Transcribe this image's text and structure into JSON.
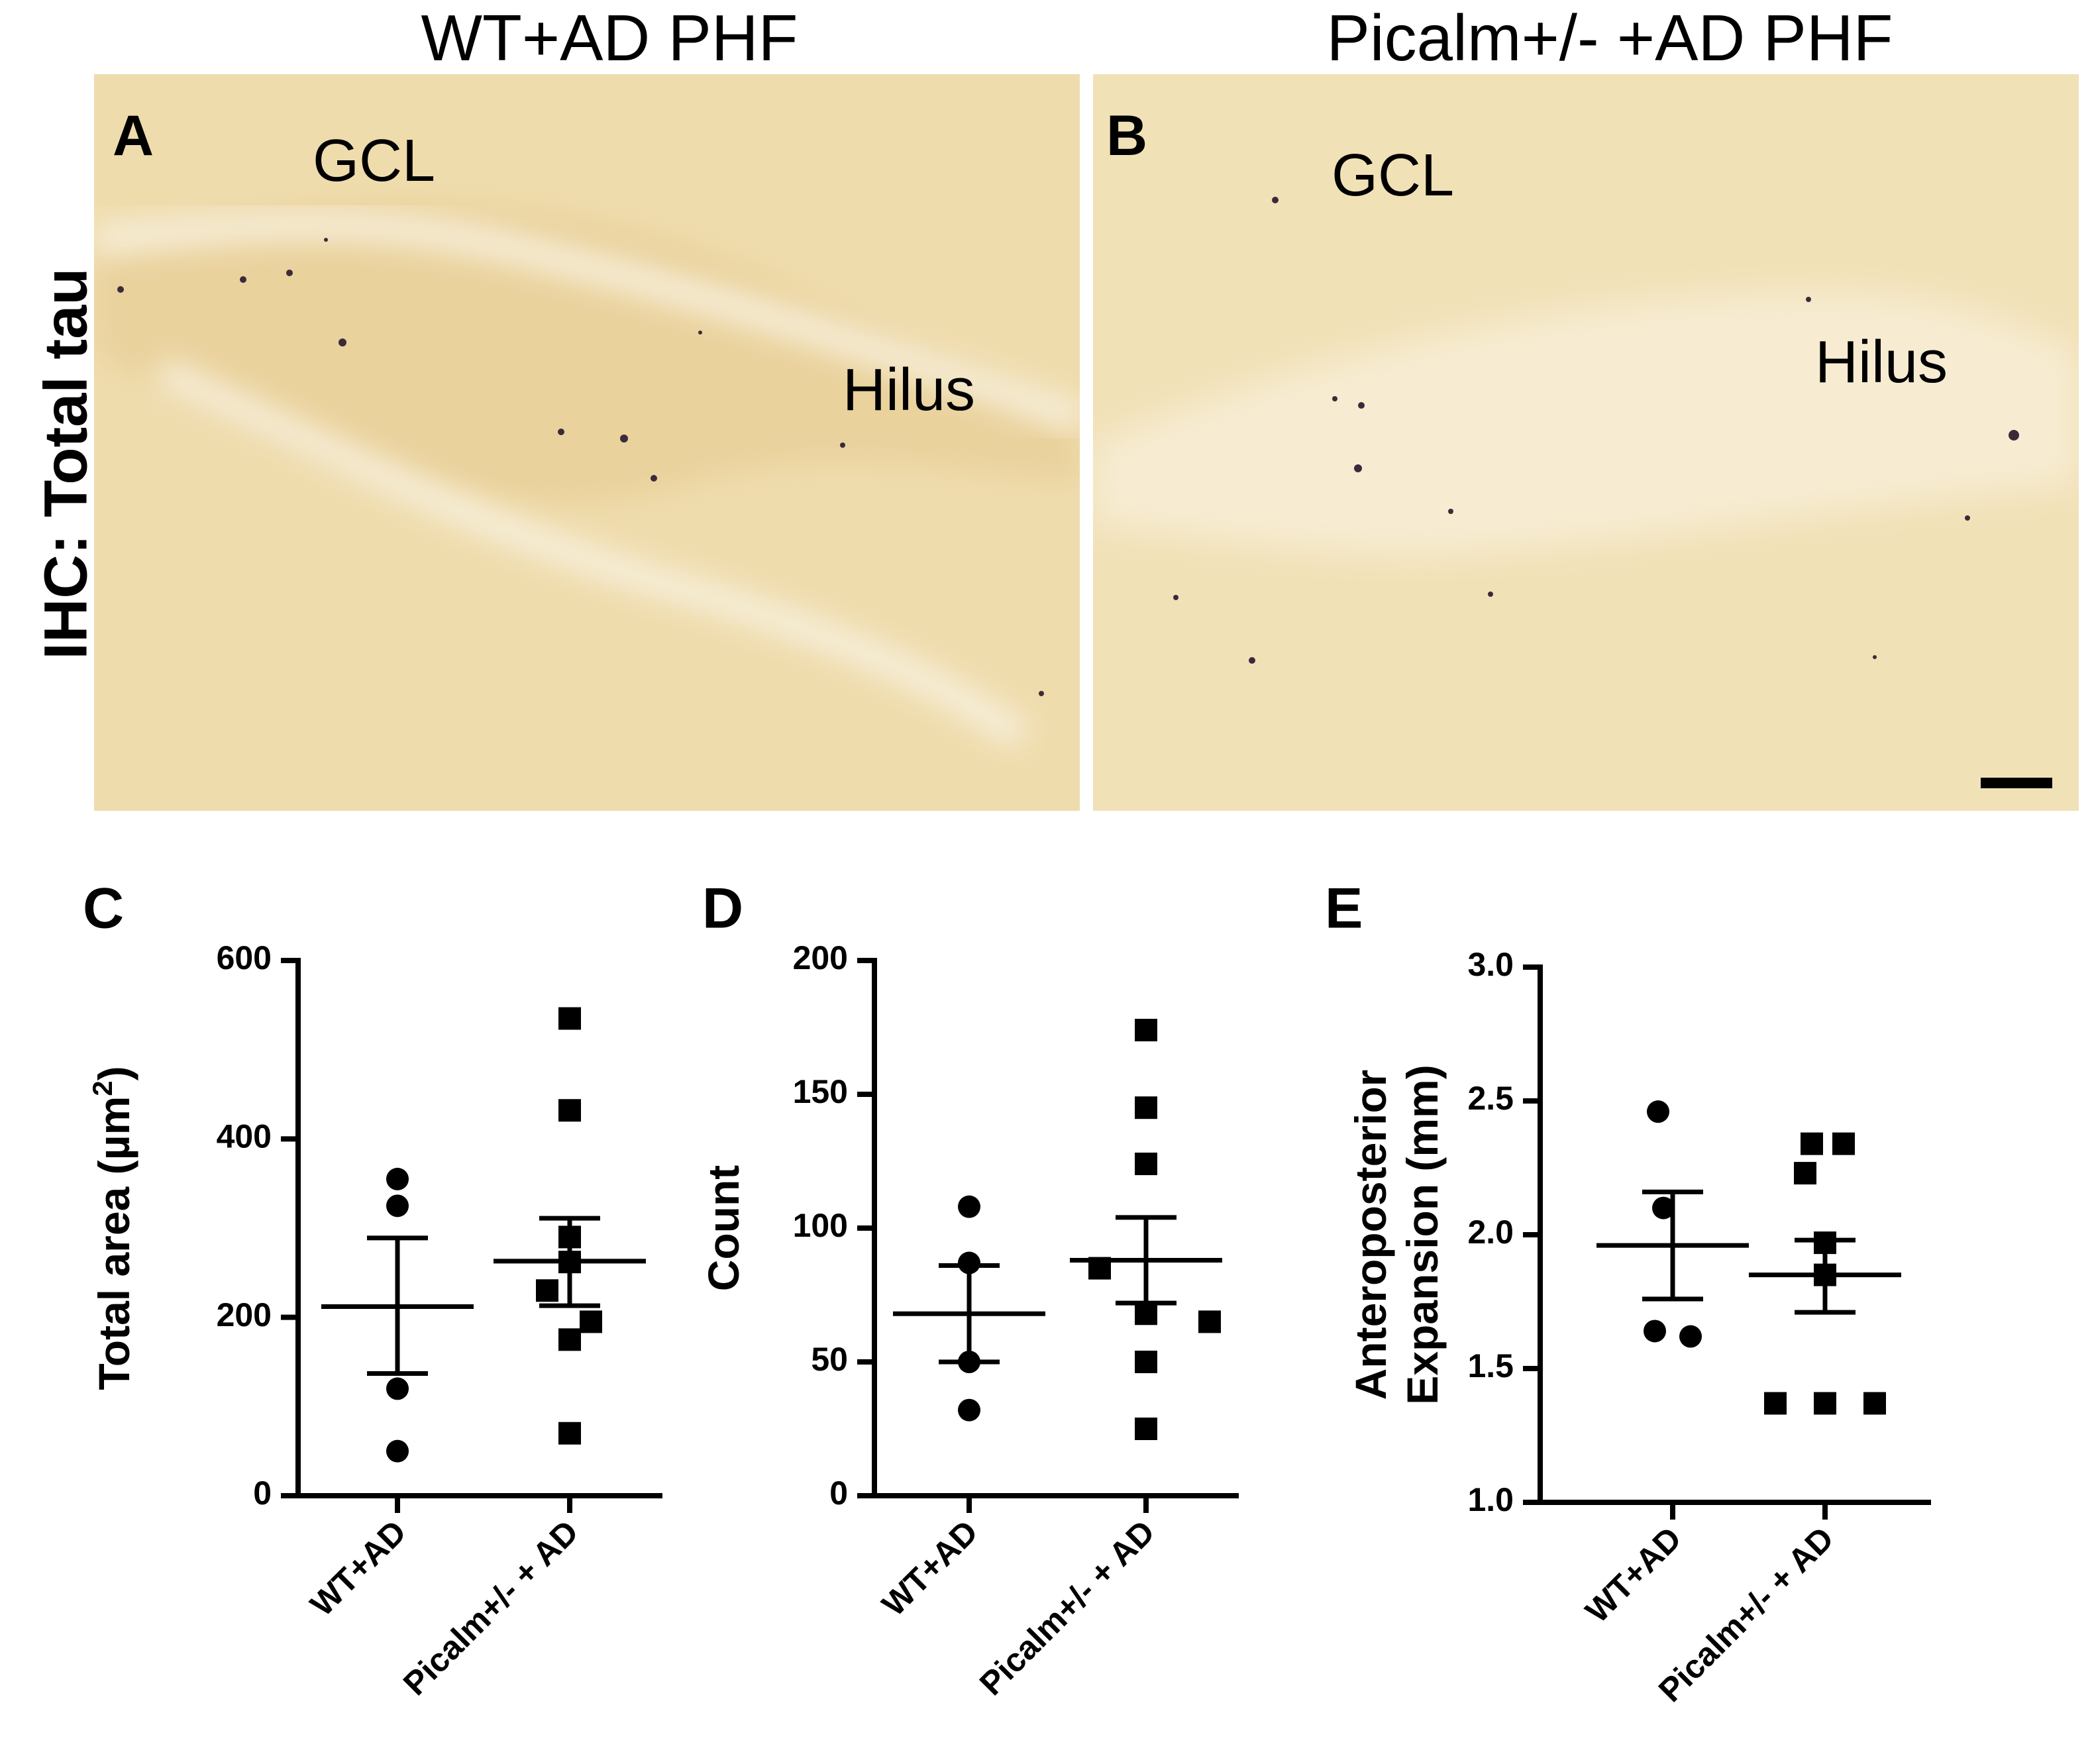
{
  "figure": {
    "column_titles": [
      "WT+AD PHF",
      "Picalm+/- +AD PHF"
    ],
    "row_title": "IHC: Total tau",
    "micrographs": [
      {
        "letter": "A",
        "labels": [
          "GCL",
          "Hilus"
        ]
      },
      {
        "letter": "B",
        "labels": [
          "GCL",
          "Hilus"
        ]
      }
    ]
  },
  "chart_data": [
    {
      "panel": "C",
      "type": "scatter",
      "ylabel": "Total area (µm²)",
      "ylabel_main": "Total area (µm",
      "ylabel_sup": "2",
      "ylabel_tail": ")",
      "ylim": [
        0,
        600
      ],
      "yticks": [
        0,
        200,
        400,
        600
      ],
      "categories": [
        "WT+AD",
        "Picalm+/- + AD"
      ],
      "series": [
        {
          "marker": "circle",
          "values": [
            355,
            325,
            120,
            50
          ],
          "mean": 212,
          "sem_low": 137,
          "sem_high": 289
        },
        {
          "marker": "square",
          "values": [
            535,
            432,
            290,
            262,
            230,
            195,
            175,
            70
          ],
          "mean": 263,
          "sem_low": 213,
          "sem_high": 311
        }
      ]
    },
    {
      "panel": "D",
      "type": "scatter",
      "ylabel": "Count",
      "ylim": [
        0,
        200
      ],
      "yticks": [
        0,
        50,
        100,
        150,
        200
      ],
      "categories": [
        "WT+AD",
        "Picalm+/- + AD"
      ],
      "series": [
        {
          "marker": "circle",
          "values": [
            108,
            87,
            50,
            32
          ],
          "mean": 68,
          "sem_low": 50,
          "sem_high": 86
        },
        {
          "marker": "square",
          "values": [
            174,
            145,
            124,
            85,
            68,
            65,
            50,
            25
          ],
          "mean": 88,
          "sem_low": 72,
          "sem_high": 104
        }
      ]
    },
    {
      "panel": "E",
      "type": "scatter",
      "ylabel": "Anteroposterior Expansion (mm)",
      "ylabel_lines": [
        "Anteroposterior",
        "Expansion (mm)"
      ],
      "ylim": [
        1.0,
        3.0
      ],
      "yticks": [
        "1.0",
        "1.5",
        "2.0",
        "2.5",
        "3.0"
      ],
      "categories": [
        "WT+AD",
        "Picalm+/- + AD"
      ],
      "series": [
        {
          "marker": "circle",
          "values": [
            2.46,
            2.1,
            1.64,
            1.62
          ],
          "mean": 1.96,
          "sem_low": 1.76,
          "sem_high": 2.16
        },
        {
          "marker": "square",
          "values": [
            2.34,
            2.34,
            2.23,
            1.97,
            1.85,
            1.37,
            1.37,
            1.37
          ],
          "mean": 1.85,
          "sem_low": 1.71,
          "sem_high": 1.98
        }
      ]
    }
  ]
}
